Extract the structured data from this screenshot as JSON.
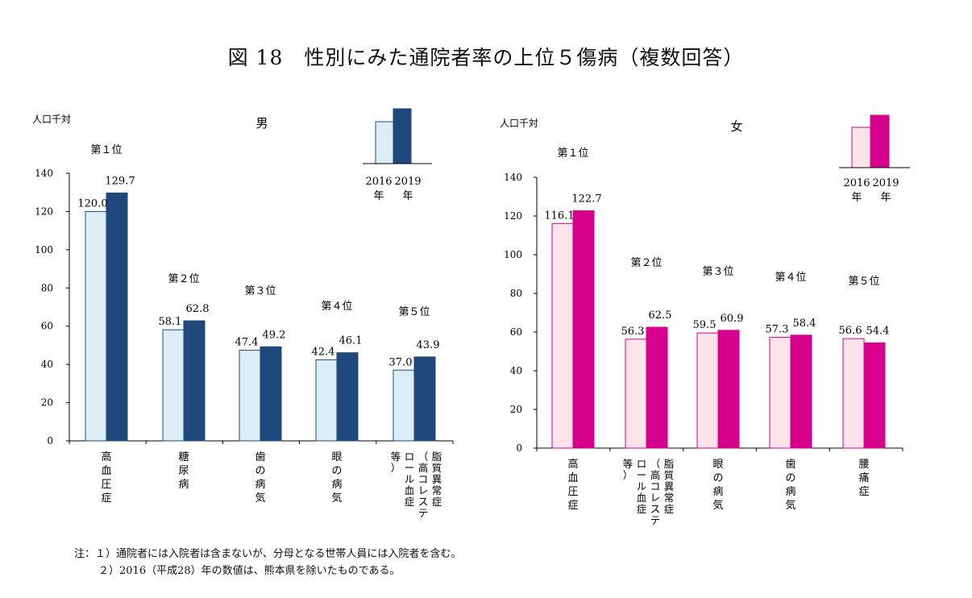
{
  "title": "図 18　性別にみた通院者率の上位５傷病（複数回答）",
  "notes": [
    "注：１）通院者には入院者は含まないが、分母となる世帯人員には入院者を含む。",
    "２）2016（平成28）年の数値は、熊本県を除いたものである。"
  ],
  "colors": {
    "male_2016": "#dcedf6",
    "male_2019": "#1f497d",
    "female_2016": "#fde3ea",
    "female_2019": "#d6008c"
  },
  "chart_data": [
    {
      "type": "bar",
      "title": "男",
      "ylabel": "人口千対",
      "ylim": [
        0,
        140
      ],
      "yticks": [
        0,
        20,
        40,
        60,
        80,
        100,
        120,
        140
      ],
      "legend_years": [
        "2016\n年",
        "2019\n年"
      ],
      "categories": [
        "高血圧症",
        "糖尿病",
        "歯の病気",
        "眼の病気",
        "脂質異常症（高コレステロール血症等）"
      ],
      "category_labels": [
        [
          "高",
          "血",
          "圧",
          "症"
        ],
        [
          "糖",
          "尿",
          "病"
        ],
        [
          "歯",
          "の",
          "病",
          "気"
        ],
        [
          "眼",
          "の",
          "病",
          "気"
        ],
        [
          "脂質異常症",
          "（高コレステ",
          "ロール血症",
          "等）"
        ]
      ],
      "ranks": [
        "第１位",
        "第２位",
        "第３位",
        "第４位",
        "第５位"
      ],
      "series": [
        {
          "year": "2016",
          "values": [
            120.0,
            58.1,
            47.4,
            42.4,
            37.0
          ]
        },
        {
          "year": "2019",
          "values": [
            129.7,
            62.8,
            49.2,
            46.1,
            43.9
          ]
        }
      ],
      "value_labels": [
        [
          "120.0",
          "58.1",
          "47.4",
          "42.4",
          "37.0"
        ],
        [
          "129.7",
          "62.8",
          "49.2",
          "46.1",
          "43.9"
        ]
      ]
    },
    {
      "type": "bar",
      "title": "女",
      "ylabel": "人口千対",
      "ylim": [
        0,
        140
      ],
      "yticks": [
        0,
        20,
        40,
        60,
        80,
        100,
        120,
        140
      ],
      "legend_years": [
        "2016\n年",
        "2019\n年"
      ],
      "categories": [
        "高血圧症",
        "脂質異常症（高コレステロール血症等）",
        "眼の病気",
        "歯の病気",
        "腰痛症"
      ],
      "category_labels": [
        [
          "高",
          "血",
          "圧",
          "症"
        ],
        [
          "脂質異常症",
          "（高コレステ",
          "ロール血症",
          "等）"
        ],
        [
          "眼",
          "の",
          "病",
          "気"
        ],
        [
          "歯",
          "の",
          "病",
          "気"
        ],
        [
          "腰",
          "痛",
          "症"
        ]
      ],
      "ranks": [
        "第１位",
        "第２位",
        "第３位",
        "第４位",
        "第５位"
      ],
      "series": [
        {
          "year": "2016",
          "values": [
            116.1,
            56.3,
            59.5,
            57.3,
            56.6
          ]
        },
        {
          "year": "2019",
          "values": [
            122.7,
            62.5,
            60.9,
            58.4,
            54.4
          ]
        }
      ],
      "value_labels": [
        [
          "116.1",
          "56.3",
          "59.5",
          "57.3",
          "56.6"
        ],
        [
          "122.7",
          "62.5",
          "60.9",
          "58.4",
          "54.4"
        ]
      ]
    }
  ]
}
